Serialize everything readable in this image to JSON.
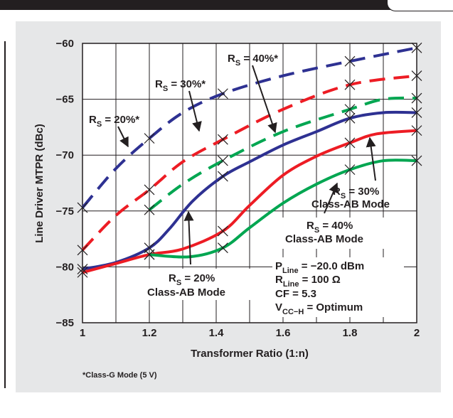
{
  "chart_data": {
    "type": "line",
    "xlabel": "Transformer Ratio (1:n)",
    "ylabel": "Line Driver MTPR (dBc)",
    "xlim": [
      1,
      2
    ],
    "ylim": [
      -85,
      -60
    ],
    "xticks": [
      "1",
      "1.2",
      "1.4",
      "1.6",
      "1.8",
      "2"
    ],
    "yticks": [
      "−60",
      "−65",
      "−70",
      "−75",
      "−80",
      "−85"
    ],
    "grid": true,
    "footnote": "*Class-G Mode (5 V)",
    "colors": {
      "navy": "#2e3192",
      "red": "#ed1c24",
      "green": "#00a651",
      "ink": "#231f20",
      "panel": "#e6e7e8"
    },
    "series": [
      {
        "color": "#2e3192",
        "dash": true,
        "x": [
          1,
          1.1,
          1.2,
          1.3,
          1.42,
          1.6,
          1.8,
          2
        ],
        "y": [
          -74.7,
          -71.2,
          -68.5,
          -66.2,
          -64.5,
          -62.9,
          -61.6,
          -60.4
        ]
      },
      {
        "color": "#ed1c24",
        "dash": true,
        "x": [
          1,
          1.1,
          1.2,
          1.3,
          1.42,
          1.6,
          1.8,
          2
        ],
        "y": [
          -78.5,
          -75.4,
          -73.1,
          -70.6,
          -68.6,
          -65.9,
          -63.7,
          -62.9
        ]
      },
      {
        "color": "#00a651",
        "dash": true,
        "x": [
          1.2,
          1.3,
          1.42,
          1.6,
          1.8,
          1.9,
          2
        ],
        "y": [
          -74.9,
          -72.6,
          -70.5,
          -67.9,
          -65.9,
          -65.0,
          -64.9
        ]
      },
      {
        "color": "#2e3192",
        "dash": false,
        "x": [
          1,
          1.1,
          1.2,
          1.26,
          1.33,
          1.42,
          1.5,
          1.6,
          1.7,
          1.8,
          1.9,
          2
        ],
        "y": [
          -80.2,
          -79.6,
          -78.3,
          -76.6,
          -74.1,
          -71.9,
          -70.6,
          -69.1,
          -67.9,
          -66.7,
          -66.2,
          -66.2
        ]
      },
      {
        "color": "#ed1c24",
        "dash": false,
        "x": [
          1,
          1.1,
          1.2,
          1.3,
          1.42,
          1.5,
          1.6,
          1.7,
          1.8,
          1.88,
          2
        ],
        "y": [
          -80.5,
          -79.7,
          -78.9,
          -78.4,
          -76.8,
          -74.5,
          -71.8,
          -70.1,
          -68.9,
          -68.1,
          -67.8
        ]
      },
      {
        "color": "#00a651",
        "dash": false,
        "x": [
          1.2,
          1.32,
          1.42,
          1.5,
          1.6,
          1.7,
          1.8,
          1.9,
          2
        ],
        "y": [
          -78.9,
          -79.1,
          -78.3,
          -76.5,
          -74.3,
          -72.6,
          -71.3,
          -70.5,
          -70.5
        ]
      }
    ],
    "markers": [
      [
        1,
        -74.7
      ],
      [
        1.2,
        -68.5
      ],
      [
        1.42,
        -64.5
      ],
      [
        1.8,
        -61.6
      ],
      [
        2,
        -60.4
      ],
      [
        1,
        -78.5
      ],
      [
        1.2,
        -73.1
      ],
      [
        1.42,
        -68.6
      ],
      [
        1.8,
        -63.7
      ],
      [
        2,
        -62.9
      ],
      [
        1.2,
        -74.9
      ],
      [
        1.42,
        -70.5
      ],
      [
        1.8,
        -65.9
      ],
      [
        2,
        -64.9
      ],
      [
        1,
        -80.2
      ],
      [
        1.2,
        -78.3
      ],
      [
        1.42,
        -71.9
      ],
      [
        1.8,
        -66.7
      ],
      [
        2,
        -66.2
      ],
      [
        1,
        -80.5
      ],
      [
        1.2,
        -78.9
      ],
      [
        1.42,
        -76.8
      ],
      [
        1.8,
        -68.9
      ],
      [
        2,
        -67.8
      ],
      [
        1.2,
        -78.9
      ],
      [
        1.42,
        -78.3
      ],
      [
        1.8,
        -71.3
      ],
      [
        2,
        -70.5
      ]
    ],
    "annotations": {
      "rs20g": {
        "pre": "R",
        "sub": "S",
        "post": " = 20%*"
      },
      "rs30g": {
        "pre": "R",
        "sub": "S",
        "post": " = 30%*"
      },
      "rs40g": {
        "pre": "R",
        "sub": "S",
        "post": " = 40%*"
      },
      "rs30ab": {
        "pre": "R",
        "sub": "S",
        "post": " = 30%",
        "line2": "Class-AB Mode"
      },
      "rs40ab": {
        "pre": "R",
        "sub": "S",
        "post": " = 40%",
        "line2": "Class-AB Mode"
      },
      "rs20ab": {
        "pre": "R",
        "sub": "S",
        "post": " = 20%",
        "line2": "Class-AB Mode"
      }
    },
    "conditions": {
      "pline": {
        "pre": "P",
        "sub": "Line",
        "post": " = −20.0 dBm"
      },
      "rline": {
        "pre": "R",
        "sub": "Line",
        "post": " = 100 Ω"
      },
      "cf": "CF = 5.3",
      "vcc": {
        "pre": "V",
        "sub": "CC−H",
        "post": " = Optimum"
      }
    }
  }
}
